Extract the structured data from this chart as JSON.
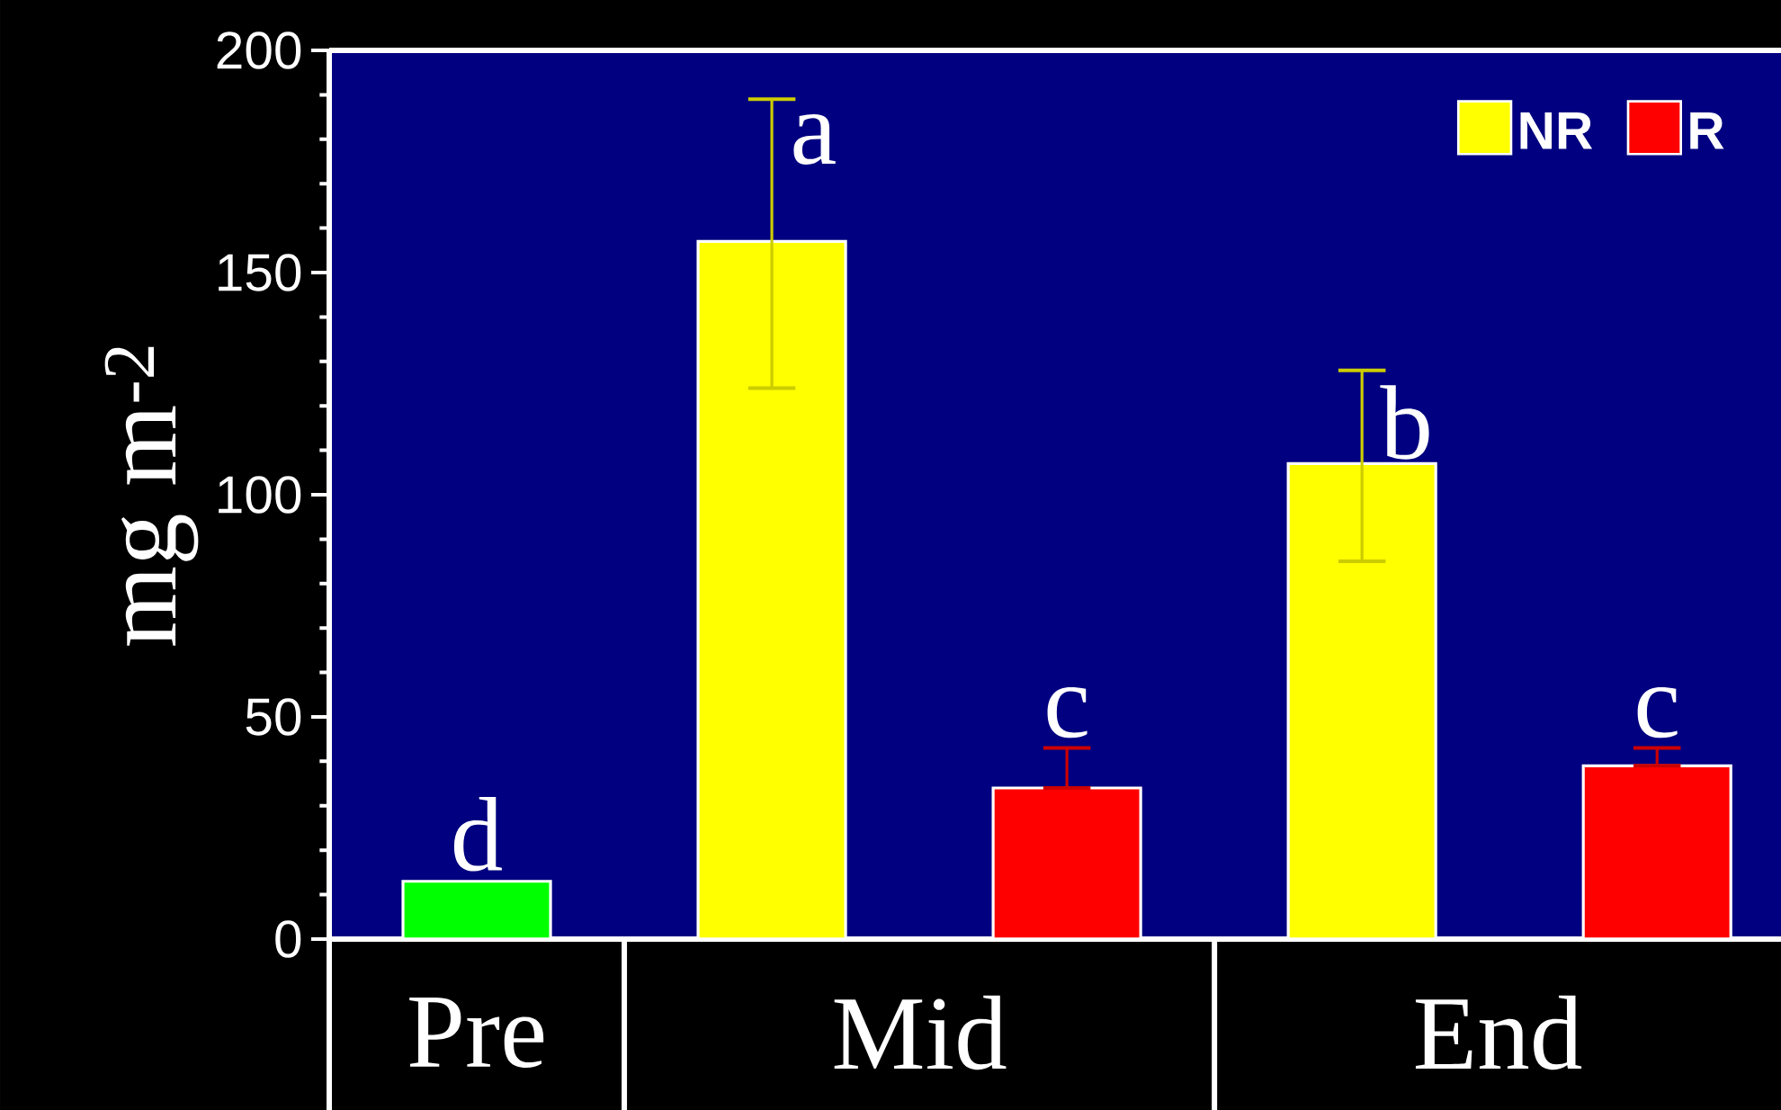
{
  "chart_data": {
    "type": "bar",
    "ylabel": "mg m$^{-2}$",
    "categories": [
      "Pre",
      "Mid",
      "End"
    ],
    "series": [
      {
        "color": "#00ff00",
        "values": [
          13,
          null,
          null
        ]
      },
      {
        "name": "NR",
        "color": "#ffff00",
        "values": [
          null,
          157,
          107
        ],
        "errors": [
          null,
          [
            124,
            189
          ],
          [
            85,
            128
          ]
        ]
      },
      {
        "name": "R",
        "color": "#ff0000",
        "values": [
          null,
          34,
          39
        ],
        "errors": [
          null,
          [
            34,
            43
          ],
          [
            39,
            43
          ]
        ]
      }
    ],
    "ylim": [
      0,
      200
    ],
    "yticks": [
      0,
      50,
      100,
      150,
      200
    ],
    "legend": "top right",
    "grid": false,
    "annotations": [
      "d",
      "a",
      "c",
      "b",
      "c"
    ]
  }
}
